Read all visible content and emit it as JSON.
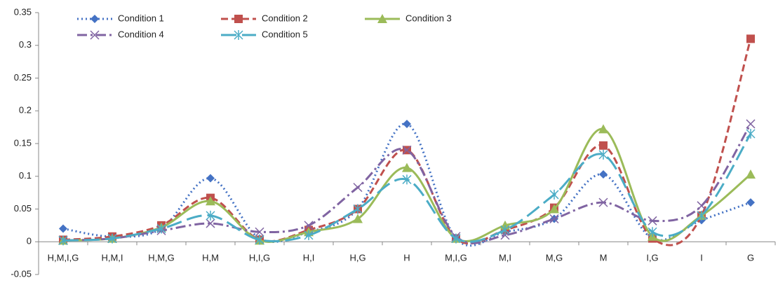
{
  "chart_data": {
    "type": "line",
    "categories": [
      "H,M,I,G",
      "H,M,I",
      "H,M,G",
      "H,M",
      "H,I,G",
      "H,I",
      "H,G",
      "H",
      "M,I,G",
      "M,I",
      "M,G",
      "M",
      "I,G",
      "I",
      "G"
    ],
    "series": [
      {
        "name": "Condition 1",
        "color": "#4472c4",
        "dash": "dot",
        "marker": "diamond",
        "values": [
          0.02,
          0.008,
          0.02,
          0.097,
          0.005,
          0.015,
          0.05,
          0.18,
          0.005,
          0.015,
          0.035,
          0.103,
          0.005,
          0.033,
          0.06
        ]
      },
      {
        "name": "Condition 2",
        "color": "#c0504d",
        "dash": "dash",
        "marker": "square",
        "values": [
          0.003,
          0.008,
          0.025,
          0.067,
          0.003,
          0.018,
          0.05,
          0.14,
          0.005,
          0.018,
          0.052,
          0.147,
          0.005,
          0.04,
          0.31
        ]
      },
      {
        "name": "Condition 3",
        "color": "#9bbb59",
        "dash": "solid",
        "marker": "triangle",
        "values": [
          0.002,
          0.005,
          0.022,
          0.062,
          0.002,
          0.015,
          0.035,
          0.113,
          0.005,
          0.025,
          0.05,
          0.172,
          0.008,
          0.04,
          0.103
        ]
      },
      {
        "name": "Condition 4",
        "color": "#8064a2",
        "dash": "dashdot",
        "marker": "x",
        "values": [
          0.002,
          0.005,
          0.017,
          0.028,
          0.015,
          0.025,
          0.083,
          0.14,
          0.008,
          0.01,
          0.035,
          0.06,
          0.032,
          0.055,
          0.18
        ]
      },
      {
        "name": "Condition 5",
        "color": "#4bacc6",
        "dash": "longdash",
        "marker": "star",
        "values": [
          0.002,
          0.005,
          0.02,
          0.04,
          0.003,
          0.01,
          0.05,
          0.095,
          0.005,
          0.018,
          0.072,
          0.133,
          0.015,
          0.04,
          0.165
        ]
      }
    ],
    "ylim": [
      -0.05,
      0.35
    ],
    "yticks": [
      -0.05,
      0,
      0.05,
      0.1,
      0.15,
      0.2,
      0.25,
      0.3,
      0.35
    ],
    "grid": false,
    "smooth": true,
    "legend": "top-left"
  }
}
